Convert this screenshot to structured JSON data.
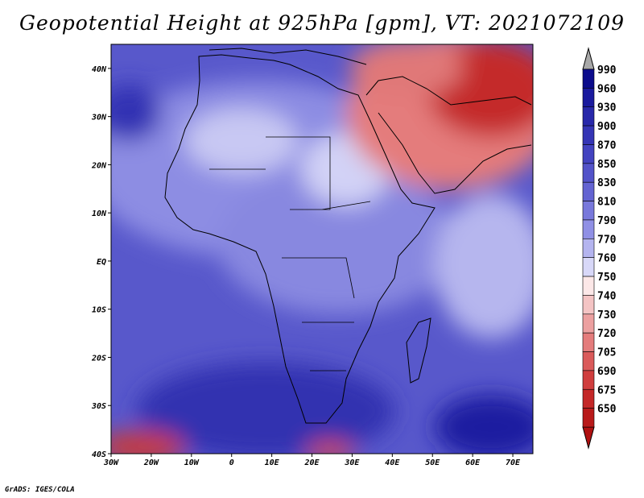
{
  "title": "Geopotential Height at 925hPa [gpm], VT: 2021072109",
  "footer": "GrADS: IGES/COLA",
  "map": {
    "extent": {
      "lon": [
        -30,
        75
      ],
      "lat": [
        -40,
        45
      ]
    },
    "x_ticks": [
      {
        "lon": -30,
        "label": "30W"
      },
      {
        "lon": -20,
        "label": "20W"
      },
      {
        "lon": -10,
        "label": "10W"
      },
      {
        "lon": 0,
        "label": "0"
      },
      {
        "lon": 10,
        "label": "10E"
      },
      {
        "lon": 20,
        "label": "20E"
      },
      {
        "lon": 30,
        "label": "30E"
      },
      {
        "lon": 40,
        "label": "40E"
      },
      {
        "lon": 50,
        "label": "50E"
      },
      {
        "lon": 60,
        "label": "60E"
      },
      {
        "lon": 70,
        "label": "70E"
      }
    ],
    "y_ticks": [
      {
        "lat": 40,
        "label": "40N"
      },
      {
        "lat": 30,
        "label": "30N"
      },
      {
        "lat": 20,
        "label": "20N"
      },
      {
        "lat": 10,
        "label": "10N"
      },
      {
        "lat": 0,
        "label": "EQ"
      },
      {
        "lat": -10,
        "label": "10S"
      },
      {
        "lat": -20,
        "label": "20S"
      },
      {
        "lat": -30,
        "label": "30S"
      },
      {
        "lat": -40,
        "label": "40S"
      }
    ]
  },
  "colorbar": {
    "levels": [
      {
        "label": "990",
        "color": "#0c0c8c"
      },
      {
        "label": "960",
        "color": "#1a1a9e"
      },
      {
        "label": "930",
        "color": "#2828aa"
      },
      {
        "label": "900",
        "color": "#3535b5"
      },
      {
        "label": "870",
        "color": "#4343c0"
      },
      {
        "label": "850",
        "color": "#5353c9"
      },
      {
        "label": "830",
        "color": "#6464d2"
      },
      {
        "label": "810",
        "color": "#7878db"
      },
      {
        "label": "790",
        "color": "#9090e5"
      },
      {
        "label": "770",
        "color": "#b4b4ef"
      },
      {
        "label": "760",
        "color": "#d8d8f8"
      },
      {
        "label": "750",
        "color": "#fce8e8"
      },
      {
        "label": "740",
        "color": "#f4c4c4"
      },
      {
        "label": "730",
        "color": "#eca0a0"
      },
      {
        "label": "720",
        "color": "#e47c7c"
      },
      {
        "label": "705",
        "color": "#da5a5a"
      },
      {
        "label": "690",
        "color": "#d03e3e"
      },
      {
        "label": "675",
        "color": "#c42828"
      },
      {
        "label": "650",
        "color": "#b81a1a"
      }
    ],
    "over_color": "#a8a8a8",
    "under_color": "#b01010"
  }
}
